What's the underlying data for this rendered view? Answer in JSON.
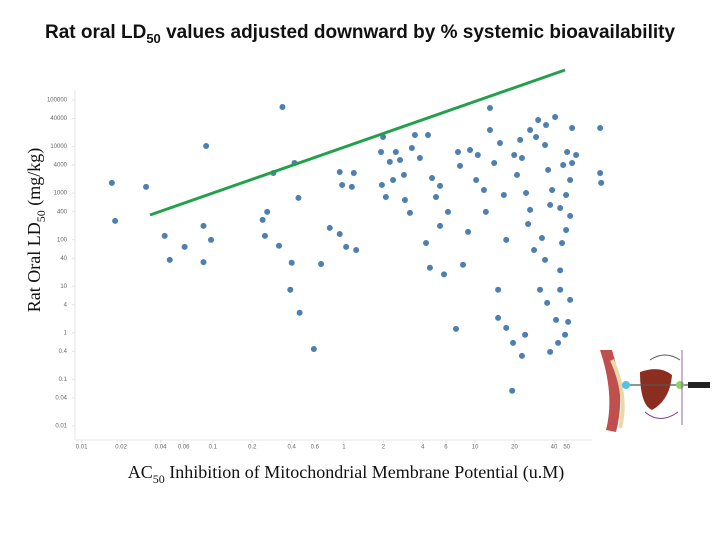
{
  "chart_data": {
    "type": "scatter",
    "title": {
      "before": "Rat oral LD",
      "sub": "50",
      "after": " values adjusted downward by % systemic bioavailability"
    },
    "y_label": {
      "before": "Rat Oral LD",
      "sub": "50",
      "after": " (mg/kg)"
    },
    "x_label": {
      "before": "AC",
      "sub": "50",
      "after": " Inhibition of Mitochondrial Membrane Potential (u.M)"
    },
    "log_x": true,
    "log_y": true,
    "xlim": [
      0.0089,
      107
    ],
    "ylim": [
      0.005,
      164000
    ],
    "xticks": [
      0.01,
      0.02,
      0.04,
      0.06,
      0.1,
      0.2,
      0.4,
      0.6,
      1,
      2,
      4,
      6,
      10,
      20,
      40,
      50
    ],
    "yticks": [
      100000,
      40000,
      10000,
      4000,
      1000,
      400,
      100,
      40,
      10,
      4,
      1,
      0.4,
      0.1,
      0.04,
      0.01
    ],
    "color": "#4d7fb0",
    "x": [
      0.017,
      0.031,
      0.018,
      0.089,
      0.043,
      0.061,
      0.047,
      0.085,
      0.085,
      0.097,
      0.34,
      0.29,
      0.42,
      0.45,
      0.26,
      0.24,
      0.25,
      0.32,
      0.4,
      0.39,
      0.46,
      0.59,
      0.67,
      0.78,
      0.93,
      0.97,
      0.93,
      1.15,
      1.04,
      1.24,
      1.19,
      1.99,
      1.92,
      2.24,
      2.49,
      2.68,
      2.87,
      1.95,
      2.37,
      2.09,
      2.92,
      3.19,
      3.3,
      3.8,
      4.38,
      3.48,
      4.7,
      5.04,
      5.41,
      6.22,
      5.41,
      4.23,
      4.53,
      5.8,
      7.16,
      8.1,
      8.85,
      7.68,
      7.41,
      9.16,
      10.5,
      10.2,
      11.7,
      12.1,
      13,
      14,
      13,
      15.5,
      16.6,
      17.3,
      15,
      15,
      17.3,
      19.5,
      19.2,
      20.9,
      19.9,
      22.1,
      22.8,
      24.5,
      25.4,
      26.3,
      28.2,
      24.1,
      22.8,
      26.3,
      29.2,
      30.3,
      34.2,
      36.1,
      38.7,
      37.4,
      32.4,
      34.2,
      31.3,
      35.5,
      37.4,
      43,
      41.5,
      48.6,
      51.3,
      53.1,
      44.6,
      44.6,
      46.1,
      49.5,
      53.1,
      44.6,
      49.5,
      53.1,
      47,
      50.4,
      55,
      59,
      90,
      90,
      91.6,
      40.8,
      34.8,
      55
    ],
    "values": [
      1660,
      1360,
      253,
      10300,
      121,
      70,
      37,
      33,
      198,
      99,
      70800,
      2710,
      4450,
      789,
      395,
      266,
      121,
      74,
      32,
      8.4,
      2.7,
      0.45,
      30,
      179,
      133,
      1500,
      2850,
      1360,
      70,
      60,
      2710,
      16100,
      7660,
      4680,
      7660,
      5150,
      2460,
      1500,
      1920,
      828,
      714,
      376,
      9330,
      5690,
      17700,
      17700,
      2120,
      828,
      1430,
      395,
      198,
      85,
      25,
      18,
      1.22,
      29,
      147,
      3840,
      7660,
      8450,
      6610,
      1920,
      1170,
      395,
      22700,
      4450,
      67300,
      11900,
      914,
      99,
      8.4,
      2.1,
      1.28,
      0.61,
      0.057,
      2460,
      6610,
      13900,
      5690,
      1010,
      218,
      436,
      60,
      0.91,
      0.32,
      22700,
      16100,
      37200,
      10800,
      3150,
      1170,
      558,
      109,
      37,
      8.4,
      4.4,
      0.39,
      0.61,
      1.9,
      0.91,
      1.72,
      5.1,
      8.4,
      22,
      85,
      162,
      324,
      481,
      914,
      1920,
      4030,
      7660,
      4450,
      6610,
      25100,
      2710,
      1660,
      43100,
      29100,
      25100
    ]
  }
}
